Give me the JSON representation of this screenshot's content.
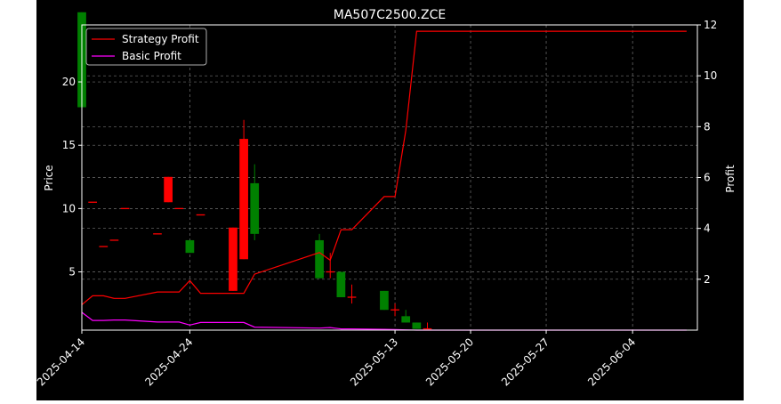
{
  "chart_data": {
    "type": "candlestick",
    "title": "MA507C2500.ZCE",
    "xlabel": "",
    "ylabel": "Price",
    "y2label": "Profit",
    "ylim": [
      0.4,
      24.5
    ],
    "y2lim": [
      0,
      12
    ],
    "xlim": [
      "2025-04-14",
      "2025-06-10"
    ],
    "x_ticks": [
      "2025-04-14",
      "2025-04-24",
      "2025-05-13",
      "2025-05-20",
      "2025-05-27",
      "2025-06-04"
    ],
    "y_ticks": [
      5,
      10,
      15,
      20
    ],
    "y2_ticks": [
      2,
      4,
      6,
      8,
      10,
      12
    ],
    "grid": true,
    "legend_position": "top-left",
    "colors": {
      "background": "#000000",
      "up": "#ff0000",
      "down": "#008000",
      "strategy": "#ff0000",
      "basic": "#ff00ff",
      "grid": "#808080",
      "text": "#ffffff"
    },
    "candles": [
      {
        "date": "2025-04-14",
        "open": 25.5,
        "high": 25.5,
        "low": 18.0,
        "close": 18.0
      },
      {
        "date": "2025-04-15",
        "open": 10.5,
        "high": 10.5,
        "low": 10.5,
        "close": 10.5
      },
      {
        "date": "2025-04-16",
        "open": 7.0,
        "high": 7.0,
        "low": 7.0,
        "close": 7.0
      },
      {
        "date": "2025-04-17",
        "open": 7.5,
        "high": 7.5,
        "low": 7.5,
        "close": 7.5
      },
      {
        "date": "2025-04-18",
        "open": 10.0,
        "high": 10.0,
        "low": 10.0,
        "close": 10.0
      },
      {
        "date": "2025-04-21",
        "open": 8.0,
        "high": 8.0,
        "low": 8.0,
        "close": 8.0
      },
      {
        "date": "2025-04-22",
        "open": 10.5,
        "high": 12.5,
        "low": 10.5,
        "close": 12.5
      },
      {
        "date": "2025-04-23",
        "open": 10.0,
        "high": 10.0,
        "low": 10.0,
        "close": 10.0
      },
      {
        "date": "2025-04-24",
        "open": 7.5,
        "high": 7.5,
        "low": 6.5,
        "close": 6.5
      },
      {
        "date": "2025-04-25",
        "open": 9.5,
        "high": 9.5,
        "low": 9.5,
        "close": 9.5
      },
      {
        "date": "2025-04-28",
        "open": 3.5,
        "high": 8.5,
        "low": 3.5,
        "close": 8.5
      },
      {
        "date": "2025-04-29",
        "open": 6.0,
        "high": 17.0,
        "low": 6.0,
        "close": 15.5
      },
      {
        "date": "2025-04-30",
        "open": 12.0,
        "high": 13.5,
        "low": 7.5,
        "close": 8.0
      },
      {
        "date": "2025-05-06",
        "open": 7.5,
        "high": 8.0,
        "low": 4.5,
        "close": 4.5
      },
      {
        "date": "2025-05-07",
        "open": 5.0,
        "high": 6.5,
        "low": 4.5,
        "close": 5.0
      },
      {
        "date": "2025-05-08",
        "open": 5.0,
        "high": 5.0,
        "low": 3.0,
        "close": 3.0
      },
      {
        "date": "2025-05-09",
        "open": 3.0,
        "high": 4.0,
        "low": 2.5,
        "close": 3.0
      },
      {
        "date": "2025-05-12",
        "open": 3.5,
        "high": 3.5,
        "low": 2.0,
        "close": 2.0
      },
      {
        "date": "2025-05-13",
        "open": 2.0,
        "high": 2.5,
        "low": 1.5,
        "close": 2.0
      },
      {
        "date": "2025-05-14",
        "open": 1.5,
        "high": 2.0,
        "low": 1.0,
        "close": 1.0
      },
      {
        "date": "2025-05-15",
        "open": 1.0,
        "high": 1.0,
        "low": 0.5,
        "close": 0.5
      },
      {
        "date": "2025-05-16",
        "open": 0.5,
        "high": 1.0,
        "low": 0.5,
        "close": 0.5
      }
    ],
    "series": [
      {
        "name": "Strategy Profit",
        "x": [
          "2025-04-14",
          "2025-04-15",
          "2025-04-16",
          "2025-04-17",
          "2025-04-18",
          "2025-04-21",
          "2025-04-22",
          "2025-04-23",
          "2025-04-24",
          "2025-04-25",
          "2025-04-28",
          "2025-04-29",
          "2025-04-30",
          "2025-05-06",
          "2025-05-07",
          "2025-05-08",
          "2025-05-09",
          "2025-05-12",
          "2025-05-13",
          "2025-05-14",
          "2025-05-15",
          "2025-05-16",
          "2025-06-09"
        ],
        "values": [
          1.0,
          1.35,
          1.35,
          1.25,
          1.25,
          1.5,
          1.5,
          1.5,
          1.95,
          1.45,
          1.45,
          1.45,
          2.2,
          3.05,
          2.75,
          3.95,
          3.95,
          5.25,
          5.25,
          7.85,
          11.75,
          11.75,
          11.75
        ]
      },
      {
        "name": "Basic Profit",
        "x": [
          "2025-04-14",
          "2025-04-15",
          "2025-04-16",
          "2025-04-17",
          "2025-04-18",
          "2025-04-21",
          "2025-04-22",
          "2025-04-23",
          "2025-04-24",
          "2025-04-25",
          "2025-04-28",
          "2025-04-29",
          "2025-04-30",
          "2025-05-06",
          "2025-05-07",
          "2025-05-08",
          "2025-05-09",
          "2025-05-12",
          "2025-05-13",
          "2025-05-14",
          "2025-05-15",
          "2025-05-16",
          "2025-06-09"
        ],
        "values": [
          0.7,
          0.38,
          0.38,
          0.4,
          0.4,
          0.32,
          0.32,
          0.32,
          0.2,
          0.3,
          0.3,
          0.3,
          0.12,
          0.08,
          0.1,
          0.05,
          0.05,
          0.03,
          0.02,
          0.01,
          0.0,
          0.0,
          0.0
        ]
      }
    ]
  }
}
